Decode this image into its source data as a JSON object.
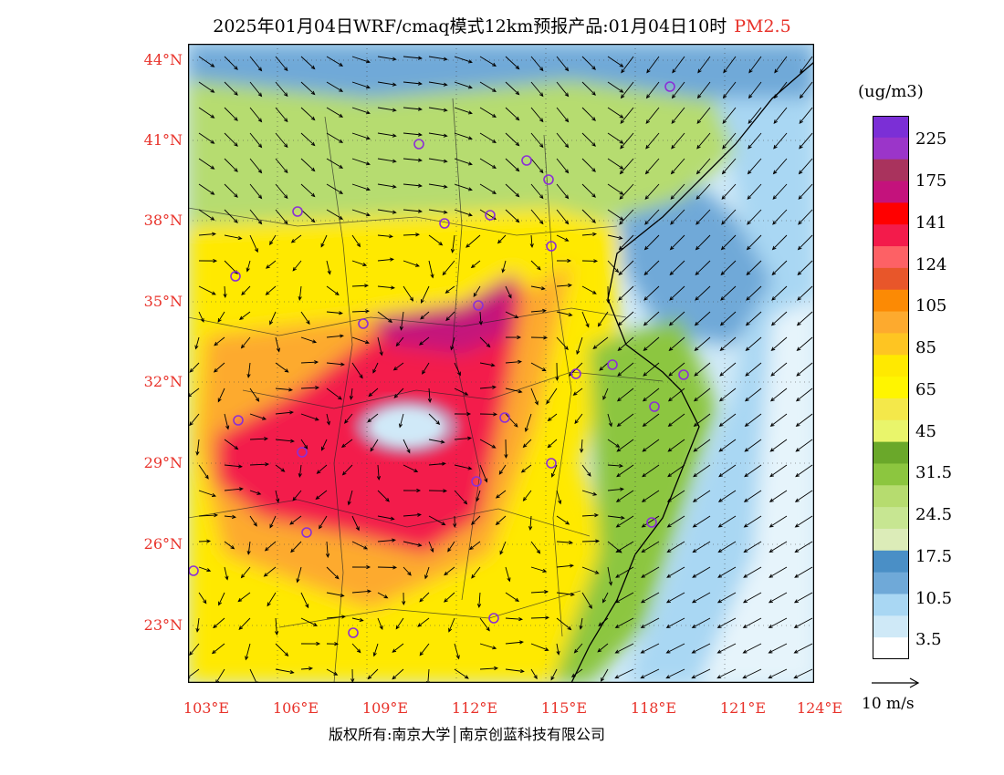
{
  "title": {
    "main": "2025年01月04日WRF/cmaq模式12km预报产品:01月04日10时",
    "pollutant": "PM2.5"
  },
  "map": {
    "lat_ticks": [
      "44°N",
      "41°N",
      "38°N",
      "35°N",
      "32°N",
      "29°N",
      "26°N",
      "23°N"
    ],
    "lon_ticks": [
      "103°E",
      "106°E",
      "109°E",
      "112°E",
      "115°E",
      "118°E",
      "121°E",
      "124°E"
    ],
    "lat_range": [
      21,
      44.5
    ],
    "lon_range": [
      103,
      124
    ],
    "overlays": [
      "wind-vectors",
      "province-borders",
      "city-markers"
    ]
  },
  "legend": {
    "unit": "(ug/m3)",
    "labels": [
      "225",
      "175",
      "141",
      "124",
      "105",
      "85",
      "65",
      "45",
      "31.5",
      "24.5",
      "17.5",
      "10.5",
      "3.5"
    ],
    "colors": [
      "#7b2fd6",
      "#9b35c9",
      "#a9335d",
      "#c4127c",
      "#ff0000",
      "#f31b4b",
      "#fd6165",
      "#e8562a",
      "#fc8a04",
      "#fdaa2e",
      "#fec522",
      "#ffe900",
      "#fff500",
      "#f4e84a",
      "#e9f56b",
      "#6aa82a",
      "#8cc63f",
      "#b6dc6f",
      "#c7e692",
      "#dcecb8",
      "#4a8fc6",
      "#6fa9d8",
      "#a9d7f3",
      "#cfe9f7",
      "#ffffff"
    ]
  },
  "wind_scale": "10 m/s",
  "copyright": "版权所有:南京大学│南京创蓝科技有限公司"
}
